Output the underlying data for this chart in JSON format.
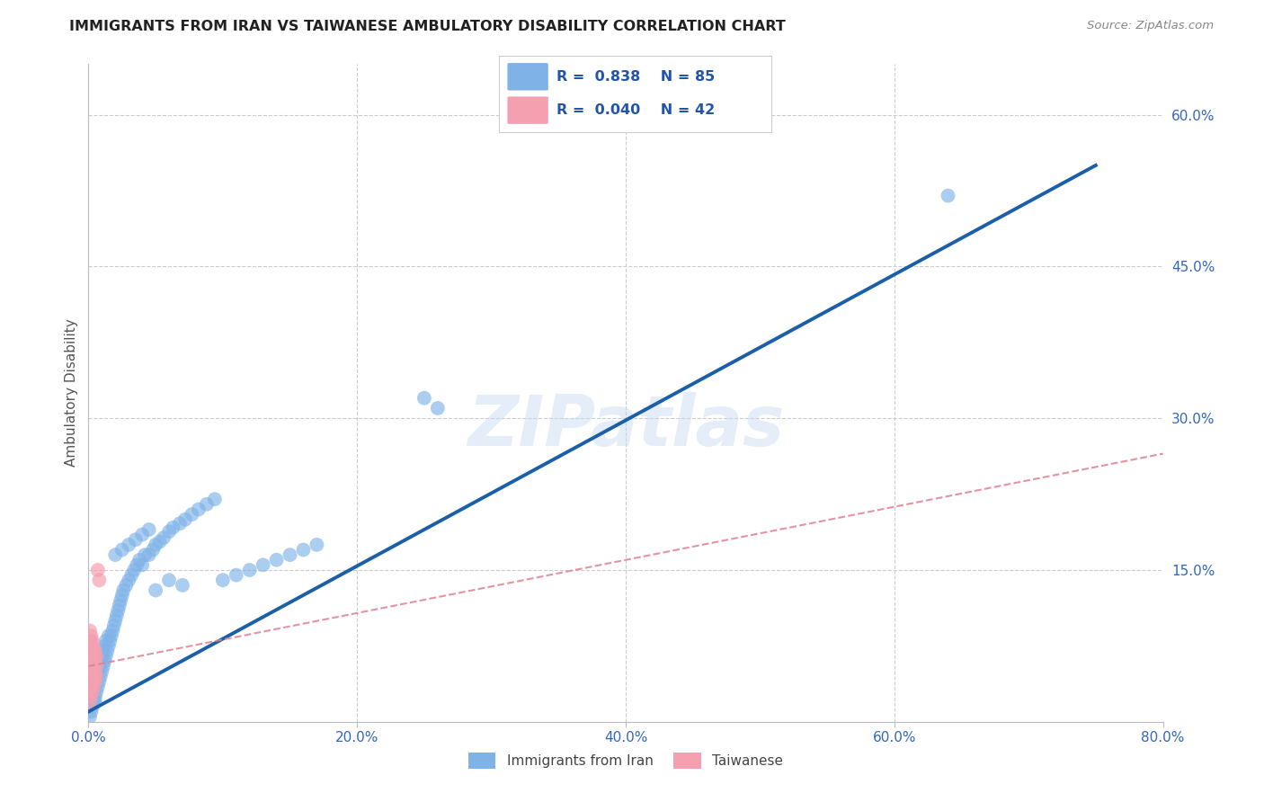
{
  "title": "IMMIGRANTS FROM IRAN VS TAIWANESE AMBULATORY DISABILITY CORRELATION CHART",
  "source": "Source: ZipAtlas.com",
  "ylabel": "Ambulatory Disability",
  "xlim": [
    0.0,
    0.8
  ],
  "ylim": [
    0.0,
    0.65
  ],
  "xticks": [
    0.0,
    0.2,
    0.4,
    0.6,
    0.8
  ],
  "xticklabels": [
    "0.0%",
    "20.0%",
    "40.0%",
    "60.0%",
    "80.0%"
  ],
  "yticks_right": [
    0.15,
    0.3,
    0.45,
    0.6
  ],
  "yticklabels_right": [
    "15.0%",
    "30.0%",
    "45.0%",
    "60.0%"
  ],
  "watermark": "ZIPatlas",
  "legend_iran_R": "0.838",
  "legend_iran_N": "85",
  "legend_taiwan_R": "0.040",
  "legend_taiwan_N": "42",
  "iran_color": "#7fb3e8",
  "taiwan_color": "#f4a0b0",
  "iran_line_color": "#1a5fa8",
  "taiwan_line_color": "#e08090",
  "background_color": "#ffffff",
  "grid_color": "#cccccc",
  "iran_scatter_x": [
    0.001,
    0.002,
    0.002,
    0.003,
    0.003,
    0.004,
    0.004,
    0.005,
    0.005,
    0.006,
    0.006,
    0.007,
    0.007,
    0.008,
    0.008,
    0.009,
    0.009,
    0.01,
    0.01,
    0.011,
    0.011,
    0.012,
    0.012,
    0.013,
    0.013,
    0.014,
    0.015,
    0.015,
    0.016,
    0.017,
    0.018,
    0.019,
    0.02,
    0.021,
    0.022,
    0.023,
    0.024,
    0.025,
    0.026,
    0.028,
    0.03,
    0.032,
    0.034,
    0.036,
    0.038,
    0.04,
    0.042,
    0.045,
    0.048,
    0.05,
    0.053,
    0.056,
    0.06,
    0.063,
    0.068,
    0.072,
    0.077,
    0.082,
    0.088,
    0.094,
    0.1,
    0.11,
    0.12,
    0.13,
    0.14,
    0.15,
    0.16,
    0.17,
    0.02,
    0.025,
    0.03,
    0.035,
    0.04,
    0.045,
    0.05,
    0.06,
    0.07,
    0.25,
    0.26,
    0.64,
    0.002,
    0.003,
    0.004,
    0.005,
    0.006
  ],
  "iran_scatter_y": [
    0.005,
    0.01,
    0.025,
    0.015,
    0.03,
    0.02,
    0.035,
    0.025,
    0.04,
    0.03,
    0.045,
    0.035,
    0.05,
    0.04,
    0.055,
    0.045,
    0.06,
    0.05,
    0.065,
    0.055,
    0.07,
    0.06,
    0.075,
    0.065,
    0.08,
    0.07,
    0.075,
    0.085,
    0.08,
    0.085,
    0.09,
    0.095,
    0.1,
    0.105,
    0.11,
    0.115,
    0.12,
    0.125,
    0.13,
    0.135,
    0.14,
    0.145,
    0.15,
    0.155,
    0.16,
    0.155,
    0.165,
    0.165,
    0.17,
    0.175,
    0.178,
    0.182,
    0.188,
    0.192,
    0.196,
    0.2,
    0.205,
    0.21,
    0.215,
    0.22,
    0.14,
    0.145,
    0.15,
    0.155,
    0.16,
    0.165,
    0.17,
    0.175,
    0.165,
    0.17,
    0.175,
    0.18,
    0.185,
    0.19,
    0.13,
    0.14,
    0.135,
    0.32,
    0.31,
    0.52,
    0.03,
    0.05,
    0.04,
    0.02,
    0.055
  ],
  "taiwan_scatter_x": [
    0.001,
    0.001,
    0.001,
    0.001,
    0.001,
    0.001,
    0.001,
    0.001,
    0.001,
    0.001,
    0.002,
    0.002,
    0.002,
    0.002,
    0.002,
    0.002,
    0.002,
    0.002,
    0.002,
    0.002,
    0.003,
    0.003,
    0.003,
    0.003,
    0.003,
    0.003,
    0.003,
    0.003,
    0.004,
    0.004,
    0.004,
    0.004,
    0.004,
    0.005,
    0.005,
    0.005,
    0.005,
    0.006,
    0.006,
    0.006,
    0.007,
    0.008
  ],
  "taiwan_scatter_y": [
    0.02,
    0.03,
    0.035,
    0.04,
    0.045,
    0.05,
    0.06,
    0.07,
    0.08,
    0.09,
    0.025,
    0.035,
    0.04,
    0.05,
    0.06,
    0.065,
    0.07,
    0.075,
    0.08,
    0.085,
    0.03,
    0.04,
    0.05,
    0.06,
    0.065,
    0.07,
    0.075,
    0.08,
    0.035,
    0.045,
    0.055,
    0.065,
    0.07,
    0.04,
    0.05,
    0.06,
    0.07,
    0.045,
    0.055,
    0.065,
    0.15,
    0.14
  ],
  "iran_line_x": [
    0.0,
    0.75
  ],
  "iran_line_y": [
    0.01,
    0.55
  ],
  "taiwan_line_x": [
    0.0,
    0.8
  ],
  "taiwan_line_y": [
    0.055,
    0.265
  ]
}
